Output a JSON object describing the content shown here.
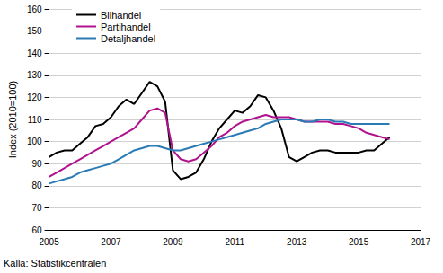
{
  "chart_data": {
    "type": "line",
    "y_label": "Index (2010=100)",
    "source": "Källa: Statistikcentralen",
    "x": [
      2005,
      2005.25,
      2005.5,
      2005.75,
      2006,
      2006.25,
      2006.5,
      2006.75,
      2007,
      2007.25,
      2007.5,
      2007.75,
      2008,
      2008.25,
      2008.5,
      2008.75,
      2009,
      2009.25,
      2009.5,
      2009.75,
      2010,
      2010.25,
      2010.5,
      2010.75,
      2011,
      2011.25,
      2011.5,
      2011.75,
      2012,
      2012.25,
      2012.5,
      2012.75,
      2013,
      2013.25,
      2013.5,
      2013.75,
      2014,
      2014.25,
      2014.5,
      2014.75,
      2015,
      2015.25,
      2015.5,
      2015.75,
      2016
    ],
    "series": [
      {
        "name": "Bilhandel",
        "color": "#000000",
        "values": [
          93,
          95,
          96,
          96,
          99,
          102,
          107,
          108,
          111,
          116,
          119,
          117,
          122,
          127,
          125,
          118,
          87,
          83,
          84,
          86,
          92,
          100,
          106,
          110,
          114,
          113,
          116,
          121,
          120,
          114,
          106,
          93,
          91,
          93,
          95,
          96,
          96,
          95,
          95,
          95,
          95,
          96,
          96,
          99,
          102
        ]
      },
      {
        "name": "Partihandel",
        "color": "#b0128e",
        "values": [
          84,
          86,
          88,
          90,
          92,
          94,
          96,
          98,
          100,
          102,
          104,
          106,
          110,
          114,
          115,
          113,
          96,
          92,
          91,
          92,
          95,
          98,
          102,
          104,
          107,
          109,
          110,
          111,
          112,
          111,
          111,
          111,
          110,
          109,
          109,
          109,
          109,
          108,
          108,
          107,
          106,
          104,
          103,
          102,
          101
        ]
      },
      {
        "name": "Detaljhandel",
        "color": "#2a7ab5",
        "values": [
          81,
          82,
          83,
          84,
          86,
          87,
          88,
          89,
          90,
          92,
          94,
          96,
          97,
          98,
          98,
          97,
          96,
          96,
          97,
          98,
          99,
          100,
          101,
          102,
          103,
          104,
          105,
          106,
          108,
          109,
          110,
          110,
          110,
          109,
          109,
          110,
          110,
          109,
          109,
          108,
          108,
          108,
          108,
          108,
          108
        ]
      }
    ],
    "xlim": [
      2005,
      2017
    ],
    "xticks": [
      2005,
      2007,
      2009,
      2011,
      2013,
      2015,
      2017
    ],
    "ylim": [
      60,
      160
    ],
    "yticks": [
      60,
      70,
      80,
      90,
      100,
      110,
      120,
      130,
      140,
      150,
      160
    ],
    "grid": true,
    "legend": "upper left"
  }
}
